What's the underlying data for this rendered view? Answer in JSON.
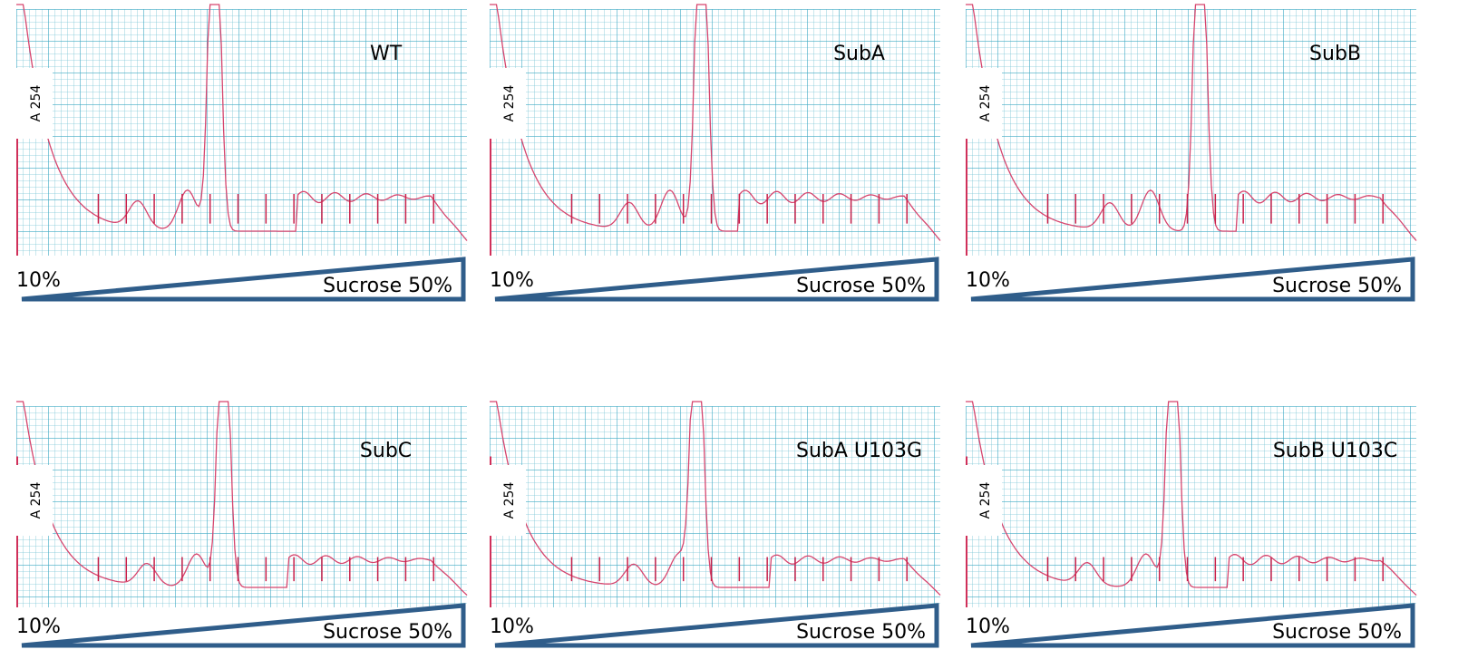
{
  "panels": [
    {
      "label": "WT",
      "y_axis_label": "A 254",
      "gradient_start": "10%",
      "gradient_end": "Sucrose 50%"
    },
    {
      "label": "SubA",
      "y_axis_label": "A 254",
      "gradient_start": "10%",
      "gradient_end": "Sucrose 50%"
    },
    {
      "label": "SubB",
      "y_axis_label": "A 254",
      "gradient_start": "10%",
      "gradient_end": "Sucrose 50%"
    },
    {
      "label": "SubC",
      "y_axis_label": "A 254",
      "gradient_start": "10%",
      "gradient_end": "Sucrose 50%"
    },
    {
      "label": "SubA U103G",
      "y_axis_label": "A 254",
      "gradient_start": "10%",
      "gradient_end": "Sucrose 50%"
    },
    {
      "label": "SubB U103C",
      "y_axis_label": "A 254",
      "gradient_start": "10%",
      "gradient_end": "Sucrose 50%"
    }
  ]
}
